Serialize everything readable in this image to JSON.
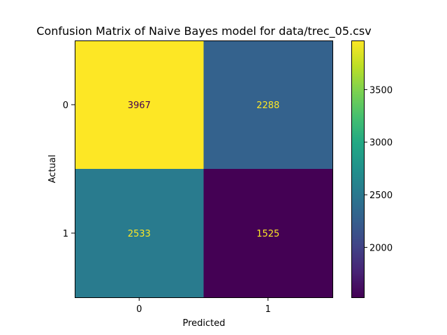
{
  "chart_data": {
    "type": "heatmap",
    "title": "Confusion Matrix of Naive Bayes model for data/trec_05.csv",
    "xlabel": "Predicted",
    "ylabel": "Actual",
    "x_categories": [
      "0",
      "1"
    ],
    "y_categories": [
      "0",
      "1"
    ],
    "values": [
      [
        3967,
        2288
      ],
      [
        2533,
        1525
      ]
    ],
    "colormap": "viridis",
    "colorbar": {
      "range": [
        1525,
        3967
      ],
      "ticks": [
        2000,
        2500,
        3000,
        3500
      ],
      "tick_labels": [
        "2000",
        "2500",
        "3000",
        "3500"
      ]
    },
    "grid": false
  }
}
